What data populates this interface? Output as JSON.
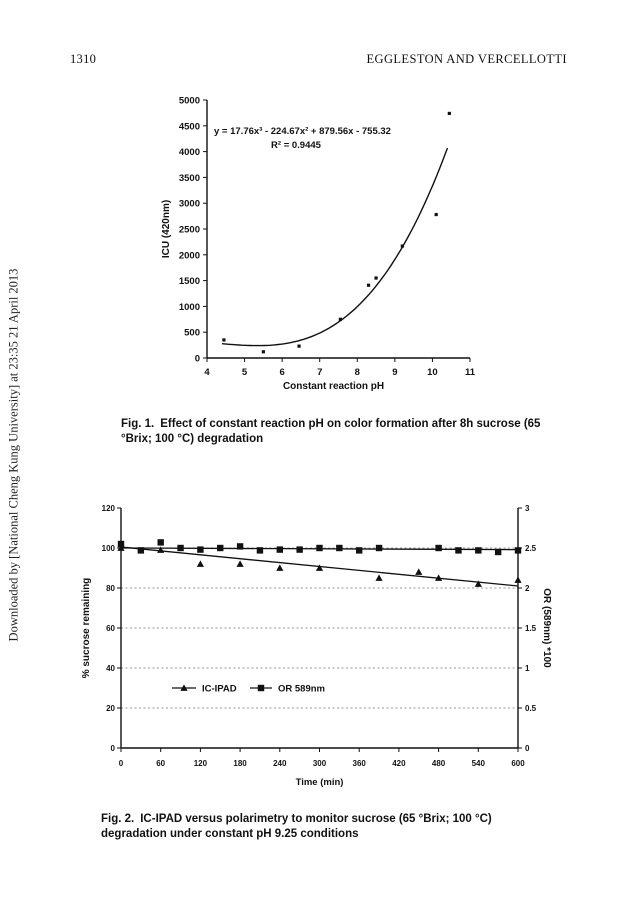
{
  "side_note": "Downloaded by [National Cheng Kung University] at 23:35 21 April 2013",
  "header": {
    "page_number": "1310",
    "running_head": "EGGLESTON AND VERCELLOTTI"
  },
  "figure1": {
    "caption_label": "Fig. 1.",
    "caption_text": "Effect of constant reaction pH on color formation after 8h sucrose (65 °Brix; 100 °C) degradation"
  },
  "figure2": {
    "caption_label": "Fig. 2.",
    "caption_text": "IC-IPAD versus polarimetry to monitor sucrose (65 °Brix; 100 °C) degradation under constant pH 9.25 conditions"
  },
  "chart_data": [
    {
      "type": "scatter",
      "title": "",
      "xlabel": "Constant reaction pH",
      "ylabel": "ICU (420nm)",
      "xlim": [
        4,
        11
      ],
      "ylim": [
        0,
        5000
      ],
      "x_ticks": [
        "4",
        "5",
        "6",
        "7",
        "8",
        "9",
        "10",
        "11"
      ],
      "y_ticks": [
        "0",
        "500",
        "1000",
        "1500",
        "2000",
        "2500",
        "3000",
        "3500",
        "4000",
        "4500",
        "5000"
      ],
      "grid": false,
      "equation": "y = 17.76x³ - 224.67x² + 879.56x - 755.32",
      "r_squared": "R² = 0.9445",
      "points": [
        {
          "x": 4.45,
          "y": 350
        },
        {
          "x": 5.5,
          "y": 120
        },
        {
          "x": 6.45,
          "y": 230
        },
        {
          "x": 7.55,
          "y": 750
        },
        {
          "x": 8.3,
          "y": 1410
        },
        {
          "x": 8.5,
          "y": 1550
        },
        {
          "x": 9.2,
          "y": 2170
        },
        {
          "x": 10.1,
          "y": 2780
        },
        {
          "x": 10.45,
          "y": 4740
        }
      ],
      "trendline": {
        "coefficients": [
          17.76,
          -224.67,
          879.56,
          -755.32
        ],
        "x_range": [
          4.4,
          10.4
        ]
      }
    },
    {
      "type": "line",
      "title": "",
      "xlabel": "Time (min)",
      "ylabel": "% sucrose remaining",
      "y2label": "OR (589nm) *100",
      "xlim": [
        0,
        600
      ],
      "ylim": [
        0,
        120
      ],
      "y2lim": [
        0,
        3
      ],
      "x_ticks": [
        "0",
        "60",
        "120",
        "180",
        "240",
        "300",
        "360",
        "420",
        "480",
        "540",
        "600"
      ],
      "y_ticks": [
        "0",
        "20",
        "40",
        "60",
        "80",
        "100",
        "120"
      ],
      "y2_ticks": [
        "0",
        "0.5",
        "1",
        "1.5",
        "2",
        "2.5",
        "3"
      ],
      "grid": "dashed horizontal",
      "legend": "middle-left",
      "series": [
        {
          "name": "IC-IPAD",
          "axis": "left",
          "marker": "triangle",
          "x": [
            0,
            60,
            120,
            180,
            240,
            300,
            390,
            450,
            480,
            540,
            600
          ],
          "y": [
            100,
            99,
            92,
            92,
            90,
            90,
            85,
            88,
            85,
            82,
            84
          ],
          "trend": [
            [
              0,
              100.5
            ],
            [
              600,
              81
            ]
          ]
        },
        {
          "name": "OR 589nm",
          "axis": "right",
          "marker": "square",
          "x": [
            0,
            30,
            60,
            90,
            120,
            150,
            180,
            210,
            240,
            270,
            300,
            330,
            360,
            390,
            480,
            510,
            540,
            570,
            600
          ],
          "y": [
            2.55,
            2.47,
            2.57,
            2.5,
            2.48,
            2.5,
            2.52,
            2.47,
            2.48,
            2.48,
            2.5,
            2.5,
            2.47,
            2.5,
            2.5,
            2.47,
            2.47,
            2.45,
            2.47
          ],
          "trend": [
            [
              0,
              2.5
            ],
            [
              600,
              2.48
            ]
          ]
        }
      ]
    }
  ]
}
